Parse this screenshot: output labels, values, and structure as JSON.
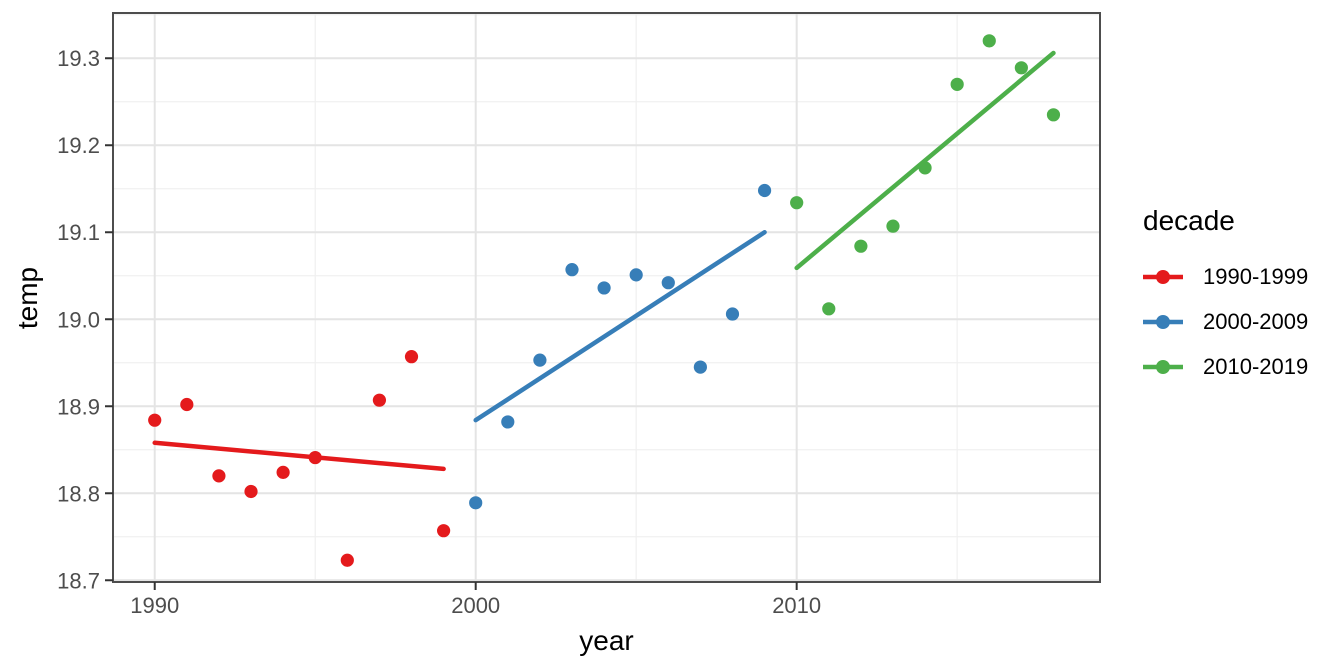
{
  "chart_data": {
    "type": "scatter",
    "title": "",
    "xlabel": "year",
    "ylabel": "temp",
    "xlim": [
      1988.7,
      2019.45
    ],
    "ylim": [
      18.698,
      19.352
    ],
    "grid": true,
    "legend_title": "decade",
    "legend_position": "right",
    "x_ticks": {
      "values": [
        1990,
        2000,
        2010
      ],
      "labels": [
        "1990",
        "2000",
        "2010"
      ]
    },
    "y_ticks": {
      "values": [
        18.7,
        18.8,
        18.9,
        19.0,
        19.1,
        19.2,
        19.3
      ],
      "labels": [
        "18.7",
        "18.8",
        "18.9",
        "19.0",
        "19.1",
        "19.2",
        "19.3"
      ]
    },
    "x_minor_gridlines": [
      1995,
      2005,
      2015
    ],
    "y_minor_gridlines": [
      18.75,
      18.85,
      18.95,
      19.05,
      19.15,
      19.25,
      19.35
    ],
    "series": [
      {
        "name": "1990-1999",
        "color": "#E41A1C",
        "x": [
          1990,
          1991,
          1992,
          1993,
          1994,
          1995,
          1996,
          1997,
          1998,
          1999
        ],
        "y": [
          18.884,
          18.902,
          18.82,
          18.802,
          18.824,
          18.841,
          18.723,
          18.907,
          18.957,
          18.757
        ],
        "trend": {
          "x": [
            1990,
            1999
          ],
          "y": [
            18.858,
            18.828
          ]
        }
      },
      {
        "name": "2000-2009",
        "color": "#377EB8",
        "x": [
          2000,
          2001,
          2002,
          2003,
          2004,
          2005,
          2006,
          2007,
          2008,
          2009
        ],
        "y": [
          18.789,
          18.882,
          18.953,
          19.057,
          19.036,
          19.051,
          19.042,
          18.945,
          19.006,
          19.148
        ],
        "trend": {
          "x": [
            2000,
            2009
          ],
          "y": [
            18.884,
            19.1
          ]
        }
      },
      {
        "name": "2010-2019",
        "color": "#4DAF4A",
        "x": [
          2010,
          2011,
          2012,
          2013,
          2014,
          2015,
          2016,
          2017,
          2018
        ],
        "y": [
          19.134,
          19.012,
          19.084,
          19.107,
          19.174,
          19.27,
          19.32,
          19.289,
          19.235
        ],
        "trend": {
          "x": [
            2010,
            2018
          ],
          "y": [
            19.059,
            19.306
          ]
        }
      }
    ],
    "style": {
      "background": "#FFFFFF",
      "panel_background": "#FFFFFF",
      "grid_major_color": "#E4E4E4",
      "grid_minor_color": "#F0F0F0",
      "panel_border_color": "#4D4D4D",
      "tick_mark_color": "#333333",
      "tick_label_color": "#4D4D4D",
      "axis_title_color": "#000000"
    }
  }
}
